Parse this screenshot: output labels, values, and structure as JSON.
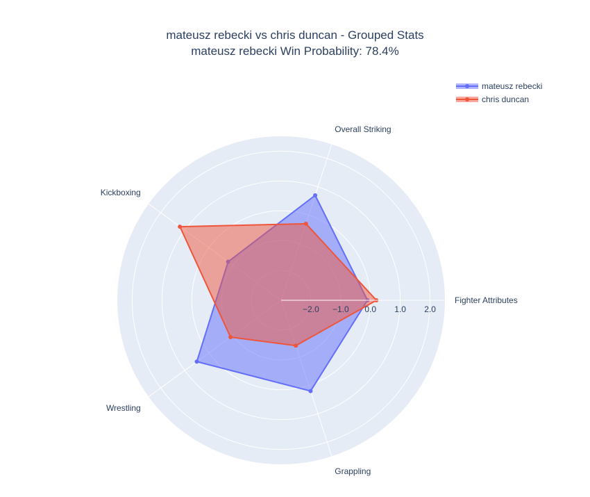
{
  "chart_data": {
    "type": "radar",
    "title": "mateusz rebecki vs chris duncan - Grouped Stats",
    "subtitle": "mateusz rebecki Win Probability: 78.4%",
    "axes": [
      "Fighter Attributes",
      "Overall Striking",
      "Kickboxing",
      "Wrestling",
      "Grappling"
    ],
    "radial_range": [
      -3.0,
      2.5
    ],
    "radial_ticks": [
      -2.0,
      -1.0,
      0.0,
      1.0,
      2.0
    ],
    "radial_tick_labels": [
      "−2.0",
      "−1.0",
      "0.0",
      "1.0",
      "2.0"
    ],
    "legend_position": "top-right",
    "series": [
      {
        "name": "mateusz rebecki",
        "values": [
          -0.1,
          0.7,
          -0.8,
          0.5,
          0.2
        ],
        "color": "#636efa"
      },
      {
        "name": "chris duncan",
        "values": [
          0.2,
          -0.3,
          1.2,
          -0.9,
          -1.4
        ],
        "color": "#ef553b"
      }
    ]
  }
}
